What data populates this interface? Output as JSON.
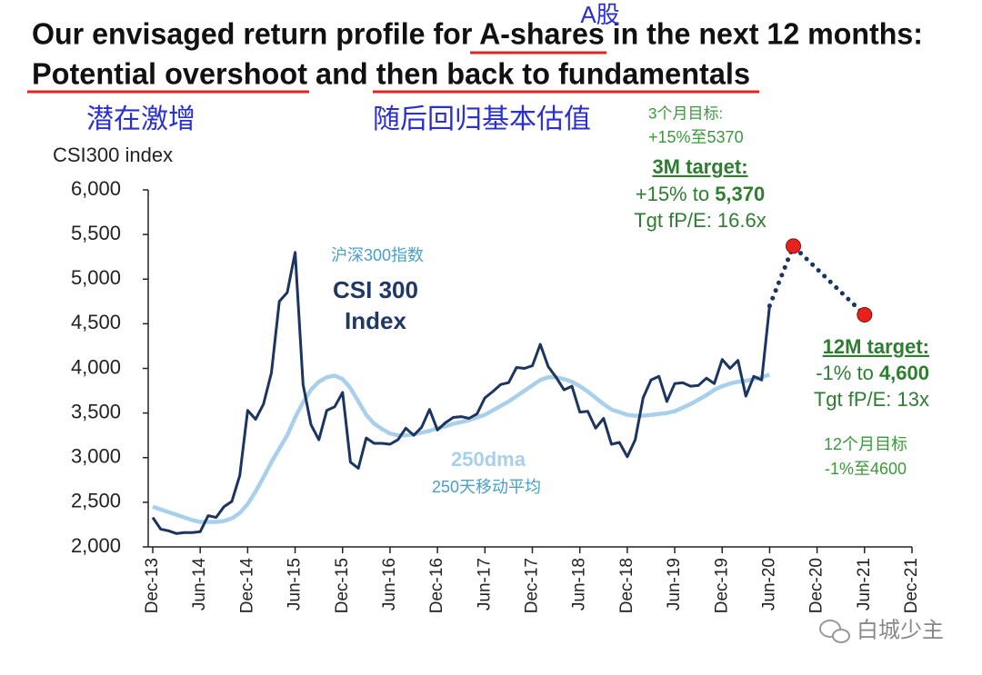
{
  "chart_data": {
    "type": "line",
    "title": "Our envisaged return profile for A-shares in the next 12 months:",
    "subtitle": "Potential overshoot and then back to fundamentals",
    "y_label": "CSI300 index",
    "x": [
      "Dec-13",
      "Jan-14",
      "Feb-14",
      "Mar-14",
      "Apr-14",
      "May-14",
      "Jun-14",
      "Jul-14",
      "Aug-14",
      "Sep-14",
      "Oct-14",
      "Nov-14",
      "Dec-14",
      "Jan-15",
      "Feb-15",
      "Mar-15",
      "Apr-15",
      "May-15",
      "Jun-15",
      "Jul-15",
      "Aug-15",
      "Sep-15",
      "Oct-15",
      "Nov-15",
      "Dec-15",
      "Jan-16",
      "Feb-16",
      "Mar-16",
      "Apr-16",
      "May-16",
      "Jun-16",
      "Jul-16",
      "Aug-16",
      "Sep-16",
      "Oct-16",
      "Nov-16",
      "Dec-16",
      "Jan-17",
      "Feb-17",
      "Mar-17",
      "Apr-17",
      "May-17",
      "Jun-17",
      "Jul-17",
      "Aug-17",
      "Sep-17",
      "Oct-17",
      "Nov-17",
      "Dec-17",
      "Jan-18",
      "Feb-18",
      "Mar-18",
      "Apr-18",
      "May-18",
      "Jun-18",
      "Jul-18",
      "Aug-18",
      "Sep-18",
      "Oct-18",
      "Nov-18",
      "Dec-18",
      "Jan-19",
      "Feb-19",
      "Mar-19",
      "Apr-19",
      "May-19",
      "Jun-19",
      "Jul-19",
      "Aug-19",
      "Sep-19",
      "Oct-19",
      "Nov-19",
      "Dec-19",
      "Jan-20",
      "Feb-20",
      "Mar-20",
      "Apr-20",
      "May-20",
      "Jun-20",
      "Jul-20",
      "Aug-20",
      "Sep-20",
      "Oct-20",
      "Nov-20",
      "Dec-20",
      "Jan-21",
      "Feb-21",
      "Mar-21",
      "Apr-21",
      "May-21",
      "Jun-21",
      "Jul-21",
      "Aug-21",
      "Sep-21",
      "Oct-21",
      "Nov-21",
      "Dec-21"
    ],
    "series": [
      {
        "name": "CSI 300 Index",
        "color": "#1b3560",
        "values": [
          2330,
          2200,
          2180,
          2150,
          2160,
          2160,
          2170,
          2350,
          2330,
          2450,
          2510,
          2800,
          3530,
          3430,
          3600,
          3950,
          4750,
          4850,
          5300,
          3820,
          3370,
          3200,
          3530,
          3570,
          3730,
          2950,
          2880,
          3220,
          3160,
          3160,
          3150,
          3200,
          3330,
          3250,
          3340,
          3540,
          3310,
          3390,
          3450,
          3460,
          3440,
          3490,
          3670,
          3740,
          3820,
          3840,
          4010,
          4000,
          4030,
          4270,
          4020,
          3900,
          3760,
          3800,
          3510,
          3520,
          3330,
          3440,
          3150,
          3170,
          3010,
          3200,
          3670,
          3870,
          3910,
          3630,
          3830,
          3840,
          3800,
          3810,
          3890,
          3830,
          4100,
          4000,
          4090,
          3690,
          3910,
          3870,
          4700,
          null,
          null,
          null,
          null,
          null,
          null,
          null,
          null,
          null,
          null,
          null,
          null,
          null,
          null,
          null,
          null,
          null,
          null
        ]
      },
      {
        "name": "250dma",
        "color": "#a9d0ea",
        "values": [
          2450,
          2420,
          2390,
          2360,
          2330,
          2300,
          2280,
          2280,
          2280,
          2290,
          2320,
          2380,
          2480,
          2620,
          2780,
          2950,
          3100,
          3250,
          3450,
          3620,
          3760,
          3850,
          3900,
          3920,
          3880,
          3780,
          3630,
          3480,
          3380,
          3320,
          3270,
          3250,
          3250,
          3260,
          3280,
          3300,
          3330,
          3350,
          3380,
          3400,
          3420,
          3450,
          3480,
          3530,
          3580,
          3630,
          3690,
          3750,
          3810,
          3870,
          3900,
          3900,
          3880,
          3850,
          3800,
          3740,
          3670,
          3600,
          3540,
          3510,
          3480,
          3470,
          3470,
          3480,
          3490,
          3500,
          3520,
          3560,
          3600,
          3650,
          3700,
          3760,
          3800,
          3830,
          3850,
          3860,
          3880,
          3900,
          3930,
          null,
          null,
          null,
          null,
          null,
          null,
          null,
          null,
          null,
          null,
          null,
          null,
          null,
          null,
          null,
          null,
          null,
          null
        ]
      }
    ],
    "targets": {
      "color": "#e8211c",
      "line_color": "#1b3560",
      "x": [
        "Jun-20",
        "Sep-20",
        "Jun-21"
      ],
      "values": [
        4700,
        5370,
        4600
      ]
    },
    "ylim": [
      2000,
      6000
    ],
    "yticks": [
      {
        "value": 2000,
        "label": "2,000"
      },
      {
        "value": 2500,
        "label": "2,500"
      },
      {
        "value": 3000,
        "label": "3,000"
      },
      {
        "value": 3500,
        "label": "3,500"
      },
      {
        "value": 4000,
        "label": "4,000"
      },
      {
        "value": 4500,
        "label": "4,500"
      },
      {
        "value": 5000,
        "label": "5,000"
      },
      {
        "value": 5500,
        "label": "5,500"
      },
      {
        "value": 6000,
        "label": "6,000"
      }
    ],
    "grid": false,
    "annotations": {
      "a_shares_cn": "A股",
      "overshoot_cn": "潜在激增",
      "fundamentals_cn": "随后回归基本估值",
      "csi_cn": "沪深300指数",
      "dma_cn": "250天移动平均",
      "target_3m_cn_1": "3个月目标:",
      "target_3m_cn_2": "+15%至5370",
      "target_3m": {
        "heading": "3M target:",
        "change": "+15% to ",
        "level": "5,370",
        "pe": "Tgt fP/E: 16.6x"
      },
      "target_12m": {
        "heading": "12M target:",
        "change": "-1% to ",
        "level": "4,600",
        "pe": "Tgt fP/E: 13x"
      },
      "target_12m_cn_1": "12个月目标",
      "target_12m_cn_2": "-1%至4600",
      "watermark": "白城少主"
    }
  }
}
